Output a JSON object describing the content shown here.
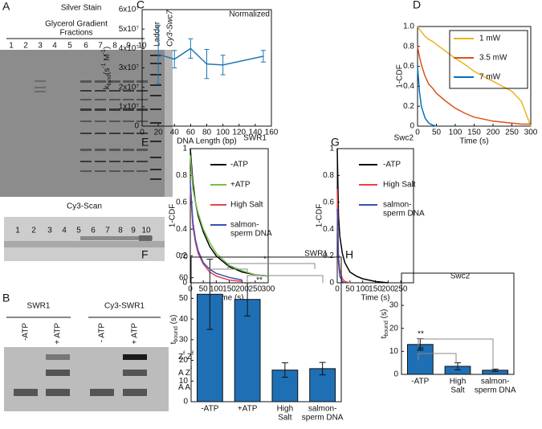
{
  "panel_a": {
    "letter": "A",
    "title": "Silver Stain",
    "subtitle": [
      "Glycerol Gradient",
      "Fractions"
    ],
    "lanes": [
      "1",
      "2",
      "3",
      "4",
      "5",
      "6",
      "7",
      "8",
      "9",
      "10"
    ],
    "ladder": "Ladder",
    "cy3_lane": "Cy3-Swc7",
    "scan_title": "Cy3-Scan",
    "scan_lanes": [
      "1",
      "2",
      "3",
      "4",
      "5",
      "6",
      "7",
      "8",
      "9",
      "10"
    ]
  },
  "panel_b": {
    "letter": "B",
    "groups": [
      "SWR1",
      "Cy3-SWR1"
    ],
    "lanes": [
      "-ATP",
      "+ ATP",
      "- ATP",
      "+ ATP"
    ],
    "species": [
      [
        {
          "text": "Z"
        },
        {
          "text": "f",
          "sup": true
        },
        {
          "text": " Z"
        },
        {
          "text": "f",
          "sup": true
        }
      ],
      [
        {
          "text": "A Z"
        },
        {
          "text": "f",
          "sup": true
        }
      ],
      [
        {
          "text": "A A"
        }
      ]
    ]
  },
  "chart_data": [
    {
      "type": "line",
      "letter": "C",
      "title": "Normalized",
      "x_label": "DNA Length (bp)",
      "y_label": [
        {
          "text": "k"
        },
        {
          "text": "bind",
          "sub": true
        },
        {
          "text": "(s"
        },
        {
          "text": "-1",
          "sup": true
        },
        {
          "text": " M"
        },
        {
          "text": "-1",
          "sup": true
        },
        {
          "text": ")"
        }
      ],
      "x": [
        20,
        40,
        60,
        80,
        100,
        150
      ],
      "series": [
        {
          "color": "#1f77b4",
          "values": [
            37000000,
            34500000,
            40000000,
            32000000,
            31500000,
            36000000
          ],
          "errors": [
            15000000,
            4500000,
            5000000,
            7500000,
            5000000,
            3000000
          ]
        }
      ],
      "xlim": [
        0,
        160
      ],
      "xticks": [
        0,
        20,
        40,
        60,
        80,
        100,
        120,
        140,
        160
      ],
      "ylim": [
        0,
        60000000
      ],
      "yticks": [
        0,
        {
          "value": 10000000,
          "label": "1x10⁷"
        },
        {
          "value": 20000000,
          "label": "2x10⁷"
        },
        {
          "value": 30000000,
          "label": "3x10⁷"
        },
        {
          "value": 40000000,
          "label": "4x10⁷"
        },
        {
          "value": 50000000,
          "label": "5x10⁷"
        },
        {
          "value": 60000000,
          "label": "6x10⁷"
        }
      ]
    },
    {
      "type": "line",
      "letter": "D",
      "x_label": "Time (s)",
      "y_label": "1-CDF",
      "legend": "top-right",
      "x": [
        0,
        5,
        10,
        20,
        30,
        40,
        50,
        75,
        100,
        125,
        150,
        175,
        200,
        225,
        250,
        275,
        300
      ],
      "series": [
        {
          "name": [
            "1 mW"
          ],
          "color": "#edb120",
          "values": [
            1.0,
            0.97,
            0.95,
            0.9,
            0.87,
            0.85,
            0.82,
            0.75,
            0.68,
            0.62,
            0.55,
            0.5,
            0.45,
            0.4,
            0.35,
            0.25,
            0.0
          ]
        },
        {
          "name": [
            "3.5 mW"
          ],
          "color": "#d95319",
          "values": [
            0.8,
            0.7,
            0.62,
            0.5,
            0.42,
            0.38,
            0.33,
            0.25,
            0.18,
            0.13,
            0.09,
            0.07,
            0.05,
            0.04,
            0.03,
            0.02,
            0.02
          ]
        },
        {
          "name": [
            "7 mW"
          ],
          "color": "#0072bd",
          "values": [
            0.6,
            0.35,
            0.2,
            0.08,
            0.03,
            0.01,
            0.0,
            null,
            null,
            null,
            null,
            null,
            null,
            null,
            null,
            null,
            null
          ]
        }
      ],
      "xlim": [
        0,
        300
      ],
      "xticks": [
        0,
        50,
        100,
        150,
        200,
        250,
        300
      ],
      "ylim": [
        0,
        1
      ],
      "yticks": [
        0,
        0.2,
        0.4,
        0.6,
        0.8,
        {
          "value": 1,
          "label": "1.0"
        }
      ]
    },
    {
      "type": "line",
      "letter": "E",
      "title": "SWR1",
      "x_label": "Time (s)",
      "y_label": "1-CDF",
      "legend": "top-right",
      "x": [
        0,
        10,
        20,
        30,
        50,
        75,
        100,
        150,
        200,
        250,
        300
      ],
      "series": [
        {
          "name": [
            "-ATP"
          ],
          "color": "#000000",
          "values": [
            1.0,
            0.75,
            0.6,
            0.5,
            0.38,
            0.27,
            0.2,
            0.12,
            0.08,
            0.06,
            0.05
          ]
        },
        {
          "name": [
            "+ATP"
          ],
          "color": "#77c04a",
          "values": [
            0.95,
            0.7,
            0.6,
            0.52,
            0.4,
            0.3,
            0.22,
            0.13,
            0.09,
            0.06,
            0.05
          ]
        },
        {
          "name": [
            "High Salt"
          ],
          "color": "#e8424a",
          "values": [
            0.7,
            0.42,
            0.3,
            0.22,
            0.14,
            0.08,
            0.05,
            0.02,
            0.01,
            null,
            null
          ]
        },
        {
          "name": [
            "salmon-",
            "sperm DNA"
          ],
          "color": "#3a4fb5",
          "values": [
            0.75,
            0.45,
            0.32,
            0.24,
            0.15,
            0.1,
            0.07,
            0.04,
            0.02,
            null,
            null
          ]
        }
      ],
      "xlim": [
        0,
        300
      ],
      "xticks": [
        0,
        50,
        100,
        150,
        200,
        250,
        300
      ],
      "ylim": [
        0,
        1
      ],
      "yticks": [
        0,
        0.2,
        0.4,
        0.6,
        0.8,
        1
      ]
    },
    {
      "type": "line",
      "letter": "G",
      "title": "Swc2",
      "x_label": "Time (s)",
      "y_label": "1-CDF",
      "legend": "top-right",
      "x": [
        0,
        5,
        10,
        20,
        30,
        50,
        75,
        100,
        150,
        200
      ],
      "series": [
        {
          "name": [
            "-ATP"
          ],
          "color": "#000000",
          "values": [
            1.0,
            0.5,
            0.35,
            0.22,
            0.15,
            0.08,
            0.05,
            0.03,
            0.01,
            0.0
          ]
        },
        {
          "name": [
            "High Salt"
          ],
          "color": "#e8424a",
          "values": [
            0.7,
            0.2,
            0.1,
            0.03,
            0.01,
            0.0,
            null,
            null,
            null,
            null
          ]
        },
        {
          "name": [
            "salmon-",
            "sperm DNA"
          ],
          "color": "#3a4fb5",
          "values": [
            0.55,
            0.15,
            0.05,
            0.01,
            0.0,
            null,
            null,
            null,
            null,
            null
          ]
        }
      ],
      "xlim": [
        0,
        300
      ],
      "xticks": [
        0,
        50,
        100,
        150,
        200,
        250
      ],
      "ylim": [
        0,
        1
      ],
      "yticks": [
        0,
        0.2,
        0.4,
        0.6,
        0.8,
        1
      ]
    },
    {
      "type": "bar",
      "letter": "F",
      "title": "SWR1",
      "y_label": [
        {
          "text": "t"
        },
        {
          "text": "bound",
          "sub": true
        },
        {
          "text": " (s)"
        }
      ],
      "categories": [
        [
          "-ATP"
        ],
        [
          "+ATP"
        ],
        [
          "High",
          "Salt"
        ],
        [
          "salmon-",
          "sperm DNA"
        ]
      ],
      "values": [
        52,
        49.5,
        15.3,
        16
      ],
      "errors": [
        17,
        8,
        3.5,
        3
      ],
      "color": "#1f6fb5",
      "annotations": [
        "*",
        "**"
      ],
      "ylim": [
        0,
        70
      ],
      "yticks": [
        0,
        10,
        20,
        30,
        40,
        50,
        60,
        70
      ]
    },
    {
      "type": "bar",
      "letter": "H",
      "title": "Swc2",
      "y_label": [
        {
          "text": "t"
        },
        {
          "text": "bound",
          "sub": true
        },
        {
          "text": " (s)"
        }
      ],
      "categories": [
        [
          "-ATP"
        ],
        [
          "High",
          "Salt"
        ],
        [
          "salmon-",
          "sperm DNA"
        ]
      ],
      "values": [
        13,
        3.5,
        1.8
      ],
      "errors": [
        2.5,
        1.5,
        0.5
      ],
      "color": "#1f6fb5",
      "annotations": [
        "**",
        "**"
      ],
      "ylim": [
        0,
        44
      ],
      "yticks": [
        0,
        10,
        20,
        30
      ]
    }
  ]
}
